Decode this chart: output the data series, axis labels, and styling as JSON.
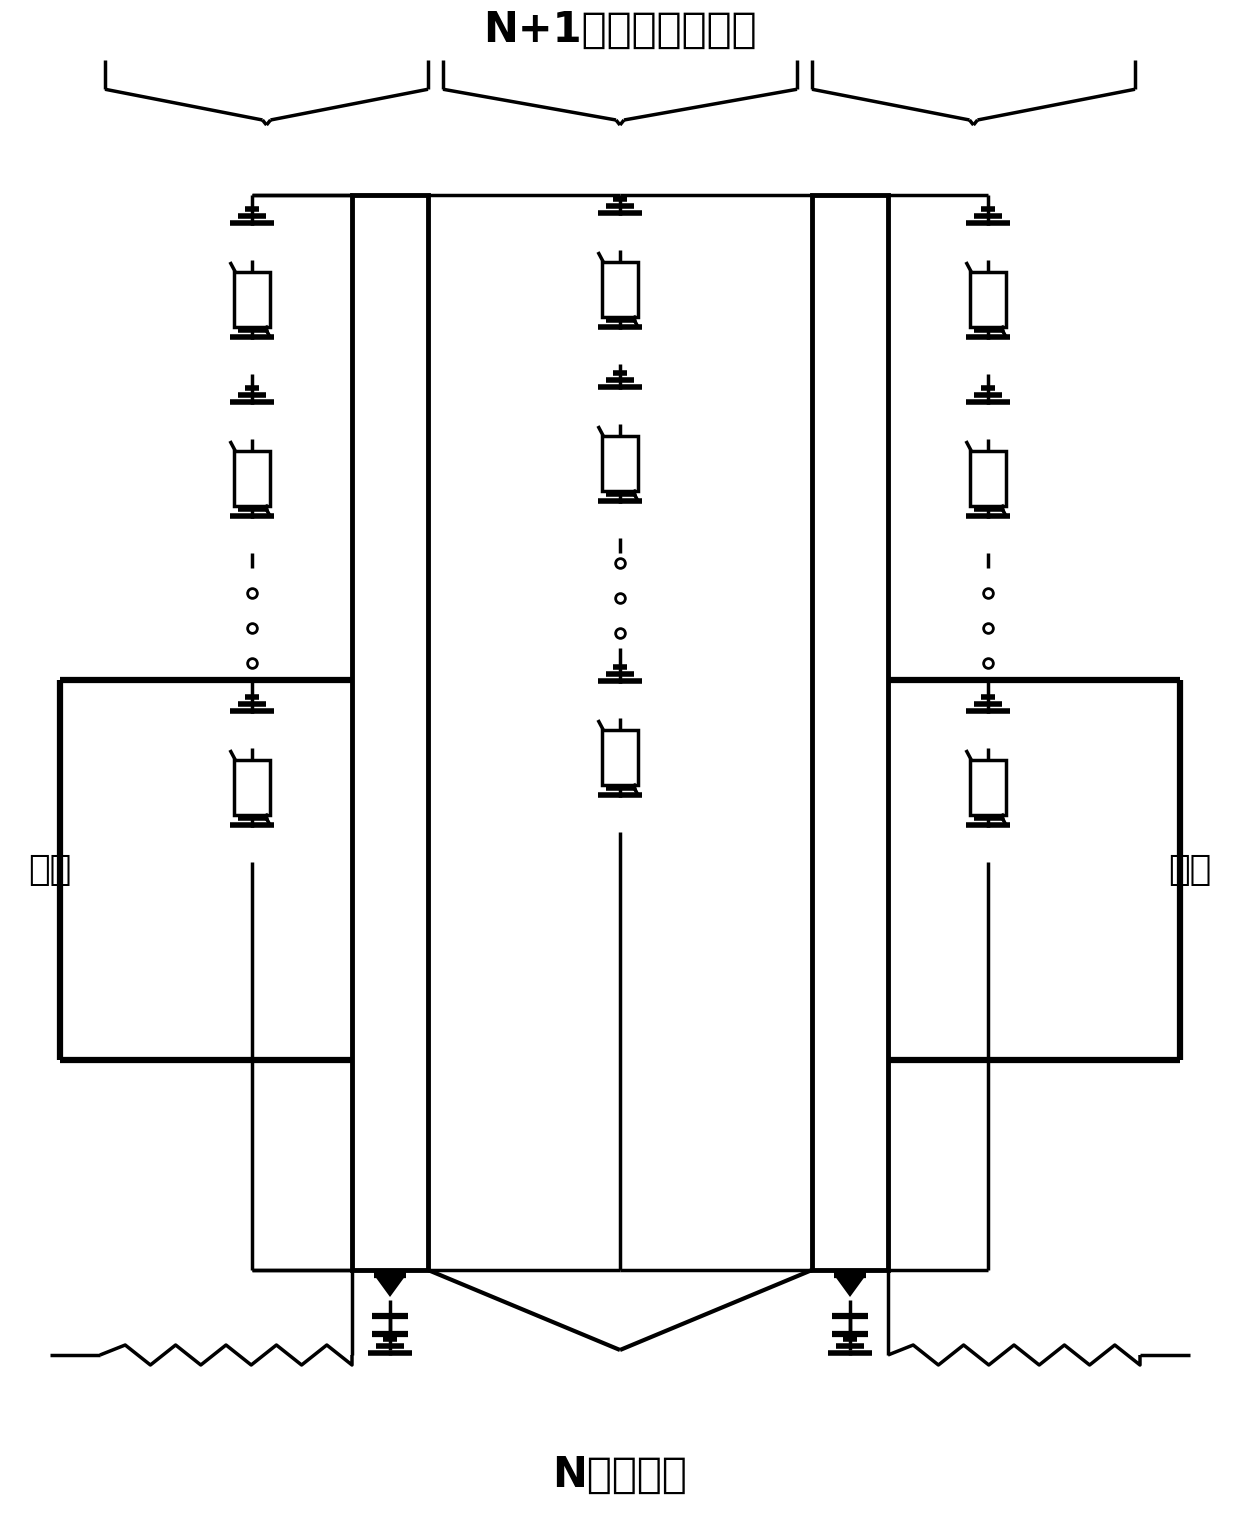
{
  "title_top": "N+1个平行耦合结构",
  "title_bottom": "N个谐振器",
  "label_input": "输入",
  "label_output": "输出",
  "bg_color": "#ffffff",
  "line_color": "#000000",
  "fig_width": 12.4,
  "fig_height": 15.35
}
